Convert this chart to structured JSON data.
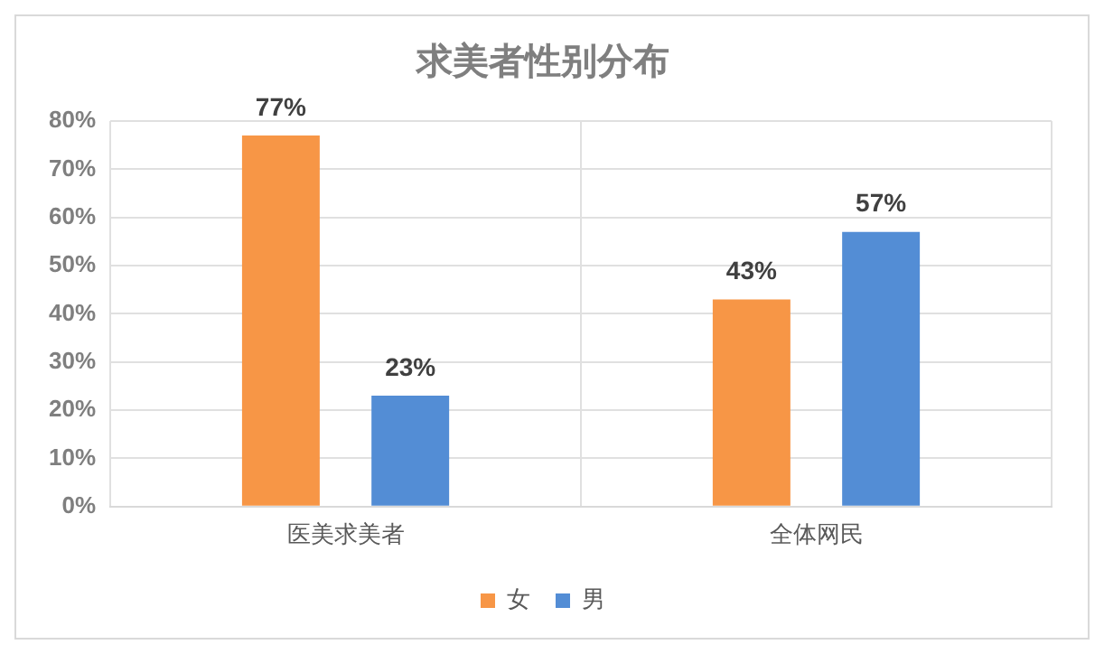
{
  "chart_data": {
    "type": "bar",
    "title": "求美者性别分布",
    "categories": [
      "医美求美者",
      "全体网民"
    ],
    "series": [
      {
        "name": "女",
        "color": "#f79646",
        "values": [
          77,
          43
        ],
        "value_labels": [
          "77%",
          "43%"
        ]
      },
      {
        "name": "男",
        "color": "#538dd5",
        "values": [
          23,
          57
        ],
        "value_labels": [
          "23%",
          "57%"
        ]
      }
    ],
    "ylim": [
      0,
      80
    ],
    "yticks": [
      {
        "value": 0,
        "label": "0%"
      },
      {
        "value": 10,
        "label": "10%"
      },
      {
        "value": 20,
        "label": "20%"
      },
      {
        "value": 30,
        "label": "30%"
      },
      {
        "value": 40,
        "label": "40%"
      },
      {
        "value": 50,
        "label": "50%"
      },
      {
        "value": 60,
        "label": "60%"
      },
      {
        "value": 70,
        "label": "70%"
      },
      {
        "value": 80,
        "label": "80%"
      }
    ],
    "grid": true,
    "legend": "bottom"
  }
}
